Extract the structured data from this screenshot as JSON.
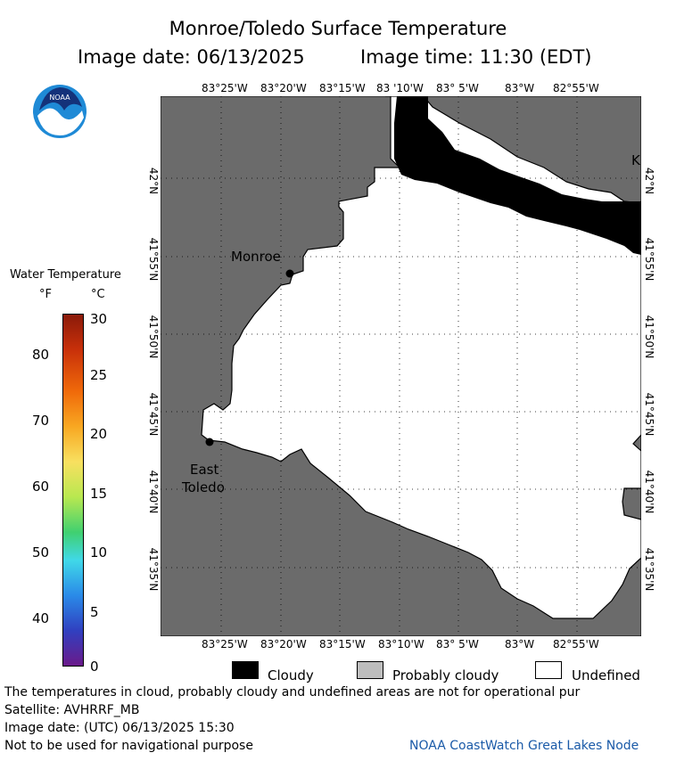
{
  "title": {
    "line1": "Monroe/Toledo Surface Temperature",
    "image_date": "Image date: 06/13/2025",
    "image_time": "Image time: 11:30 (EDT)"
  },
  "logo": {
    "text": "NOAA",
    "icon": "noaa-logo-icon"
  },
  "legend": {
    "title": "Water Temperature",
    "unit_f": "°F",
    "unit_c": "°C",
    "f_ticks": [
      "80",
      "70",
      "60",
      "50",
      "40"
    ],
    "c_ticks": [
      "30",
      "25",
      "20",
      "15",
      "10",
      "5",
      "0"
    ]
  },
  "map": {
    "lon_ticks_top": [
      "83°25'W",
      "83°20'W",
      "83°15'W",
      "83 '10'W",
      "83° 5'W",
      "83°W",
      "82°55'W"
    ],
    "lon_ticks_bottom": [
      "83°25'W",
      "83°20'W",
      "83°15'W",
      "83°10'W",
      "83° 5'W",
      "83°W",
      "82°55'W"
    ],
    "lat_ticks": [
      "42°N",
      "41°55'N",
      "41°50'N",
      "41°45'N",
      "41°40'N",
      "41°35'N"
    ],
    "lat_ticks_right": [
      "42°N",
      "41°55'N",
      "41°50'N",
      "41°45'N",
      "41°40'N",
      "41°35'N"
    ],
    "places": {
      "monroe": "Monroe",
      "east_toledo_1": "East",
      "east_toledo_2": "Toledo",
      "edge_label": "K"
    },
    "colors": {
      "land": "#6b6b6b",
      "water_undefined": "#ffffff",
      "cloud": "#000000",
      "probably_cloudy": "#bdbdbd"
    }
  },
  "category_legend": {
    "cloudy": "Cloudy",
    "probably_cloudy": "Probably cloudy",
    "undefined": "Undefined"
  },
  "footer": {
    "disclaimer": "The temperatures in cloud, probably cloudy and undefined areas are not for operational pur",
    "satellite": "Satellite: AVHRRF_MB",
    "utc_date": "Image date: (UTC) 06/13/2025  15:30",
    "nav": "Not to be used for navigational purpose",
    "credit": "NOAA CoastWatch Great Lakes Node"
  }
}
